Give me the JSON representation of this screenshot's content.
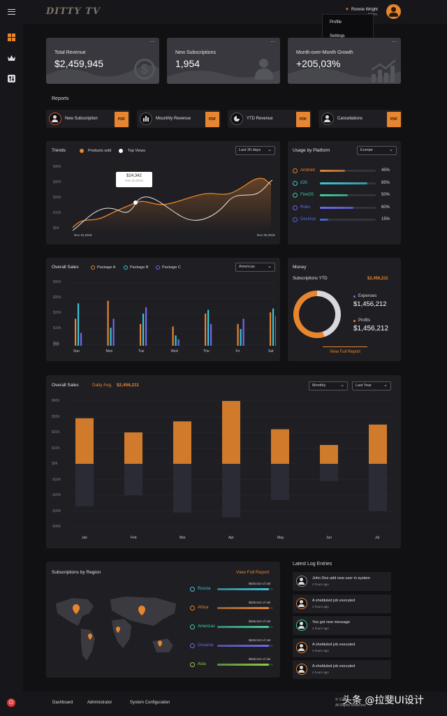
{
  "app": {
    "brand": "DITTY TV",
    "user_name": "Ronnie Wright",
    "user_role": "Admin",
    "menu": [
      "Profile",
      "Settings"
    ]
  },
  "stats": [
    {
      "label": "Total Revenue",
      "value": "$2,459,945"
    },
    {
      "label": "New Subscriptions",
      "value": "1,954"
    },
    {
      "label": "Month-over-Month Growth",
      "value": "+205,03%"
    }
  ],
  "reports": {
    "title": "Reports",
    "items": [
      "New Subscription",
      "Mounthly Revenue",
      "YTD Revenue",
      "Cancellations"
    ],
    "pdf": "PDF"
  },
  "trends": {
    "title": "Trends",
    "legend": [
      "Products sold",
      "Top Views"
    ],
    "period": "Last 30 days",
    "tooltip_value": "$24,342",
    "tooltip_date": "Nov 16,2018",
    "y_ticks": [
      "$40K",
      "$30K",
      "$20K",
      "$10K",
      "$5K"
    ],
    "x_start": "Nov 10,2018",
    "x_end": "Nov 30,2018"
  },
  "platform": {
    "title": "Usage by Platform",
    "region": "Europe",
    "items": [
      {
        "name": "Android",
        "pct": "45%",
        "value": 0.45,
        "color": "#e7862f"
      },
      {
        "name": "iOS",
        "pct": "85%",
        "value": 0.85,
        "color": "#3bc6d6"
      },
      {
        "name": "FireOS",
        "pct": "50%",
        "value": 0.5,
        "color": "#3fd19a"
      },
      {
        "name": "Roku",
        "pct": "60%",
        "value": 0.6,
        "color": "#6d6af0"
      },
      {
        "name": "Desktop",
        "pct": "15%",
        "value": 0.15,
        "color": "#4a6cf0"
      }
    ]
  },
  "overall_sales_week": {
    "title": "Overall Sales",
    "legend": [
      "Package A",
      "Package B",
      "Package C"
    ],
    "region": "Americas",
    "y_ticks": [
      "$40K",
      "$30K",
      "$20K",
      "$10K",
      "$5K",
      "$1K"
    ],
    "days": [
      "Sun",
      "Mon",
      "Tue",
      "Wed",
      "Thu",
      "Fri",
      "Sat"
    ]
  },
  "money": {
    "title": "Money",
    "subs_label": "Subscriptions YTD",
    "subs_value": "$2,456,211",
    "expenses_label": "Expenses",
    "expenses_value": "$1,456,212",
    "profits_label": "Profits",
    "profits_value": "$1,456,212",
    "link": "View Full Report"
  },
  "overall_sales_month": {
    "title": "Overall Sales",
    "daily_label": "Daily Avg.",
    "daily_value": "$2,456,211",
    "period": "Monthly",
    "range": "Last Year",
    "y_ticks": [
      "$40K",
      "$30K",
      "$20K",
      "$10K",
      "$0K",
      "-$10K",
      "-$20K",
      "-$30K",
      "-$40K"
    ],
    "months": [
      "Jan",
      "Feb",
      "Mar",
      "Apr",
      "May",
      "Jun",
      "Jul"
    ]
  },
  "region": {
    "title": "Subscriptions by Region",
    "link": "View Full Report",
    "items": [
      {
        "name": "Russia",
        "amount": "$939,910 of 1M",
        "color": "#3bc6d6"
      },
      {
        "name": "Africa",
        "amount": "$939,910 of 1M",
        "color": "#e7862f"
      },
      {
        "name": "Americas",
        "amount": "$939,910 of 1M",
        "color": "#3fd19a"
      },
      {
        "name": "Oceania",
        "amount": "$939,910 of 1M",
        "color": "#6d6af0"
      },
      {
        "name": "Asia",
        "amount": "$939,910 of 1M",
        "color": "#8bd13f"
      }
    ]
  },
  "log": {
    "title": "Latest Log Entries",
    "items": [
      {
        "text": "John Doe  add new user in system",
        "time": "4 hours ago",
        "color": "#8a8a95"
      },
      {
        "text": "A shelduled job executed",
        "time": "4 hours ago",
        "color": "#e7862f"
      },
      {
        "text": "You got new message",
        "time": "4 hours ago",
        "color": "#3fd19a"
      },
      {
        "text": "A shelduled job executed",
        "time": "4 hours ago",
        "color": "#e7862f"
      },
      {
        "text": "A shelduled job executed",
        "time": "4 hours ago",
        "color": "#e7862f"
      }
    ]
  },
  "footer": {
    "links": [
      "Dashboard",
      "Administrator",
      "System Configuration"
    ],
    "copyright": "© Co",
    "rights": "All Rights Reserved",
    "watermark": "头条 @拉斐UI设计"
  }
}
